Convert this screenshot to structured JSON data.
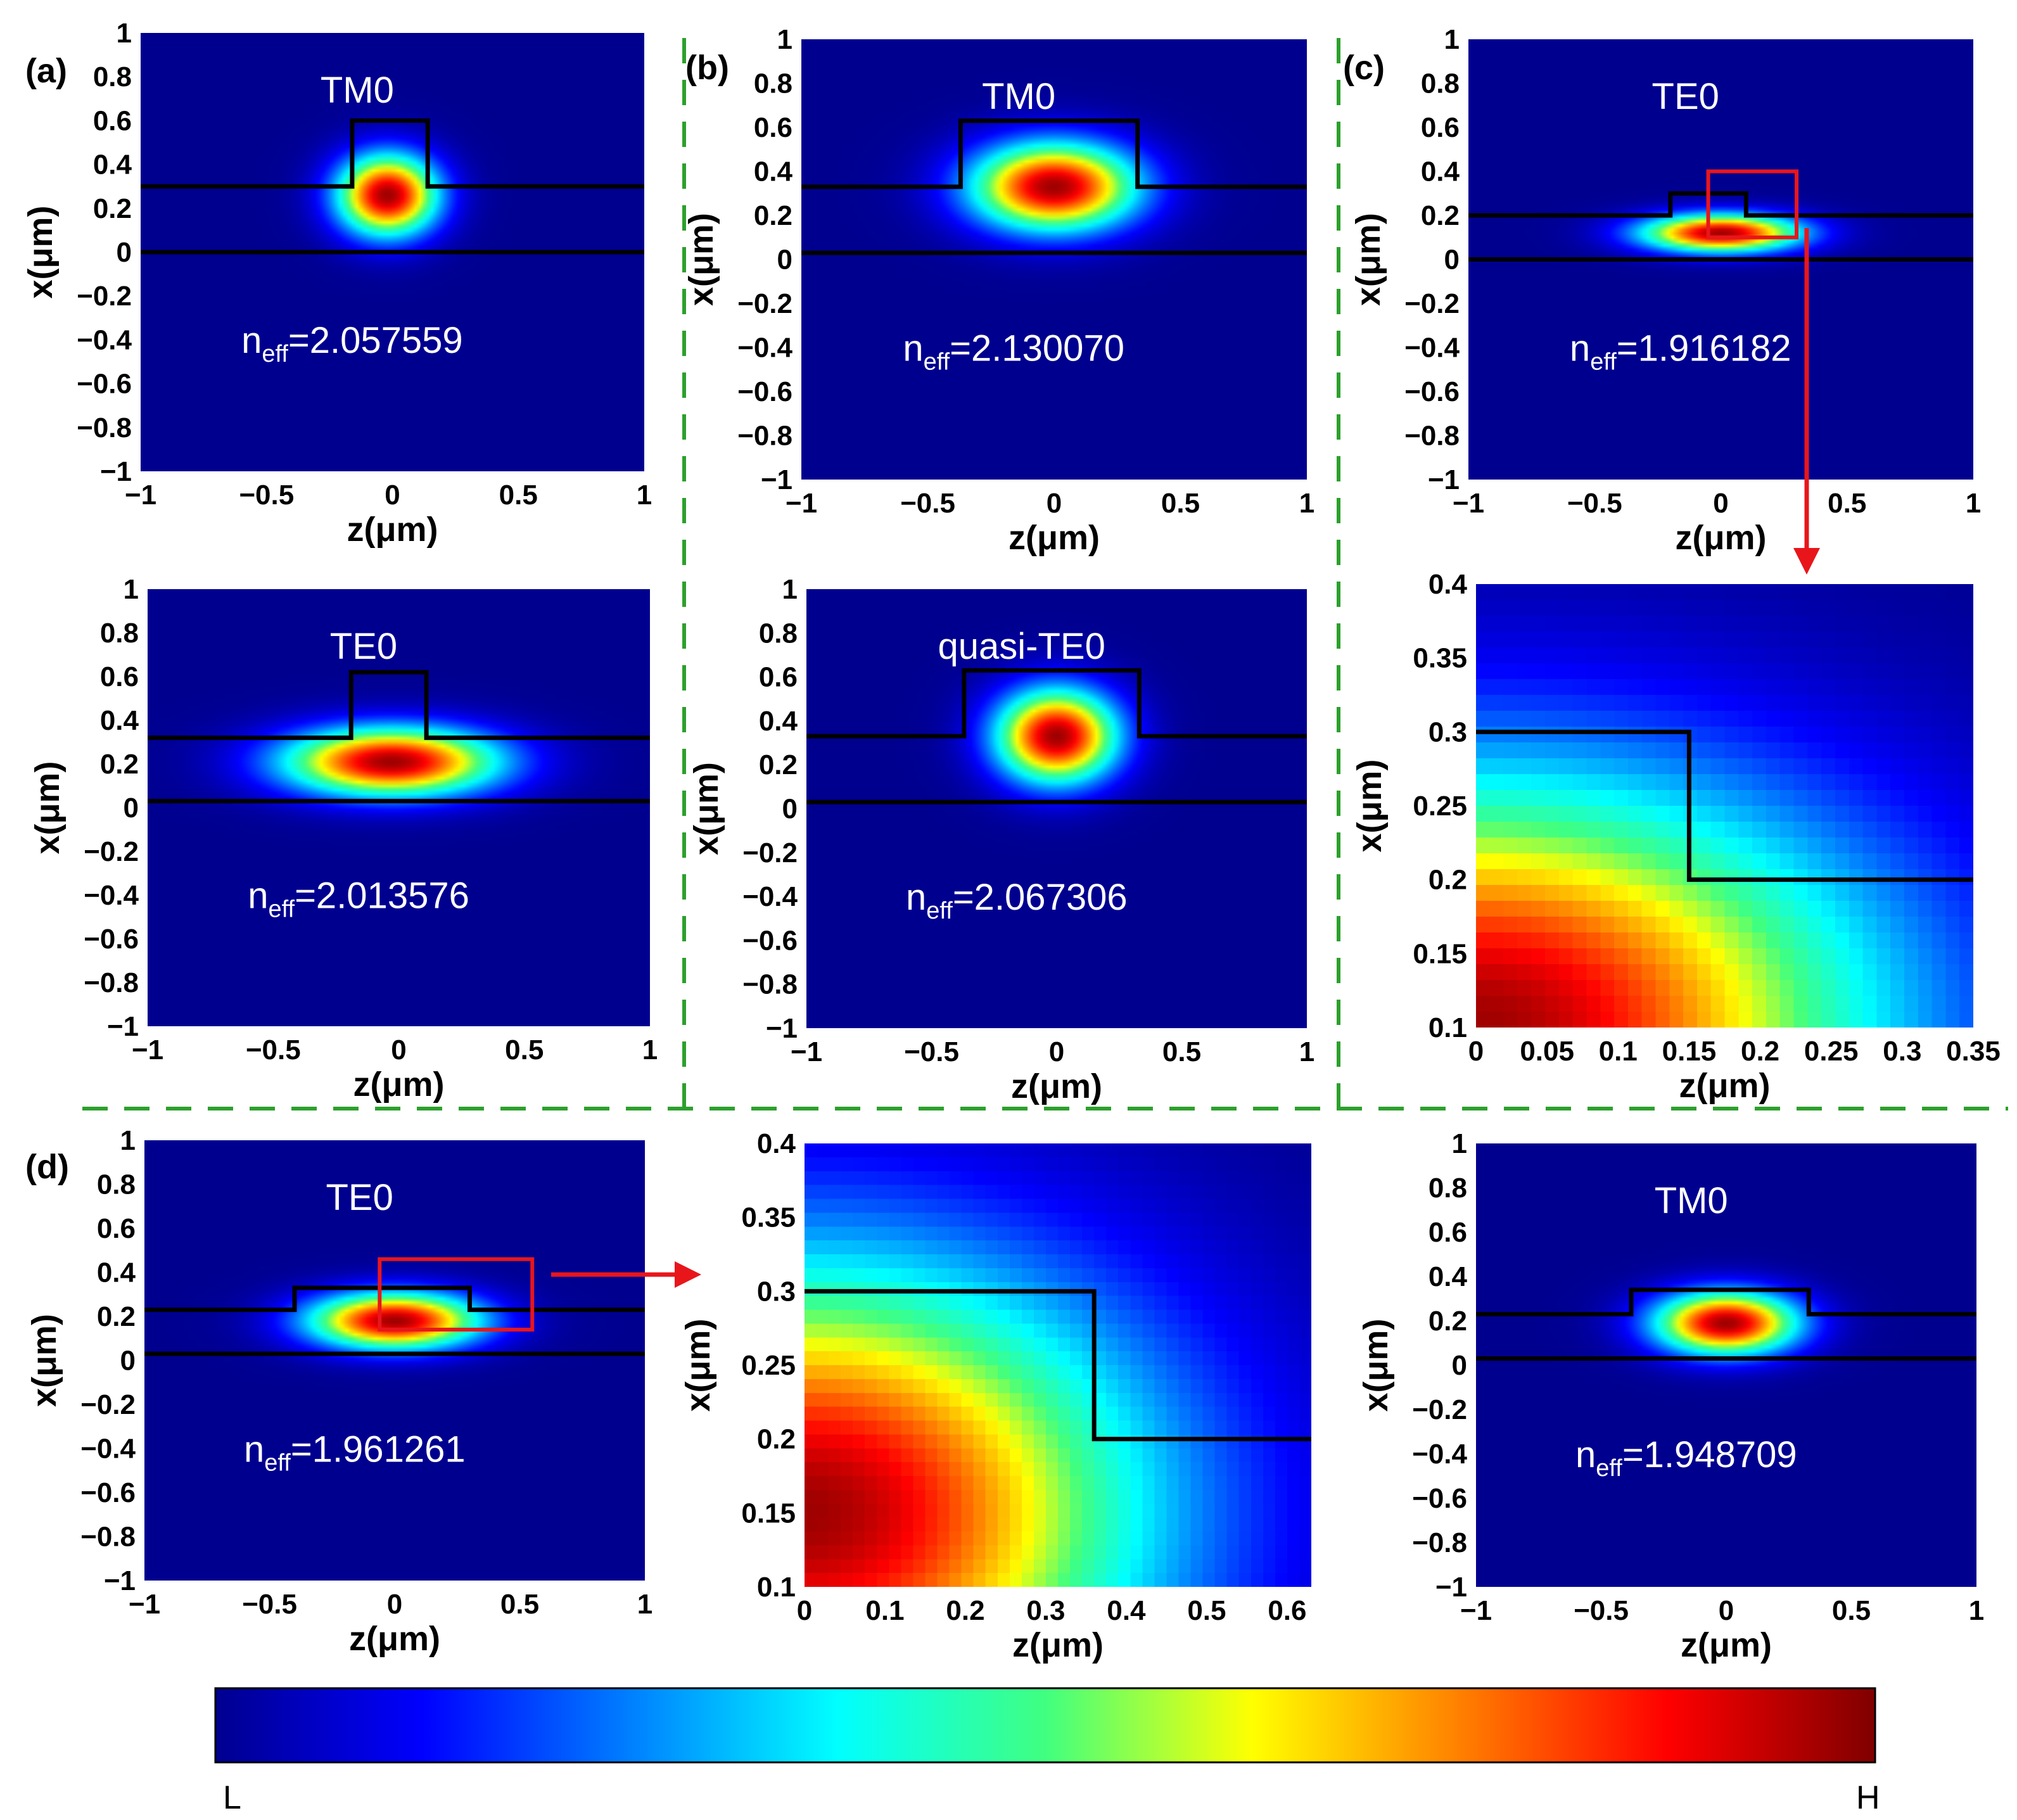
{
  "figure": {
    "colorbar": {
      "low_label": "L",
      "high_label": "H"
    }
  },
  "chart_data": [
    {
      "id": "a1",
      "type": "heatmap",
      "panel_label": "(a)",
      "mode": "TM0",
      "neff_sym": "n",
      "neff_sub": "eff",
      "neff_value": "=2.057559",
      "xlabel": "z(μm)",
      "ylabel": "x(μm)",
      "xlim": [
        -1,
        1
      ],
      "ylim": [
        -1,
        1
      ],
      "xticks": [
        -1,
        -0.5,
        0,
        0.5,
        1
      ],
      "xtick_labels": [
        "−1",
        "−0.5",
        "0",
        "0.5",
        "1"
      ],
      "yticks": [
        1,
        0.8,
        0.6,
        0.4,
        0.2,
        0,
        -0.2,
        -0.4,
        -0.6,
        -0.8,
        -1
      ],
      "ytick_labels": [
        "1",
        "0.8",
        "0.6",
        "0.4",
        "0.2",
        "0",
        "−0.2",
        "−0.4",
        "−0.6",
        "−0.8",
        "−1"
      ],
      "field": {
        "cz": -0.02,
        "cx": 0.26,
        "sz": 0.14,
        "sx": 0.13,
        "peak": 1.0
      },
      "waveguide": [
        [
          -1,
          0.3
        ],
        [
          -0.16,
          0.3
        ],
        [
          -0.16,
          0.6
        ],
        [
          0.14,
          0.6
        ],
        [
          0.14,
          0.3
        ],
        [
          1,
          0.3
        ]
      ],
      "substrate_line": 0.0
    },
    {
      "id": "a2",
      "type": "heatmap",
      "mode": "TE0",
      "neff_sym": "n",
      "neff_sub": "eff",
      "neff_value": "=2.013576",
      "xlabel": "z(μm)",
      "ylabel": "x(μm)",
      "xlim": [
        -1,
        1
      ],
      "ylim": [
        -1,
        1
      ],
      "xticks": [
        -1,
        -0.5,
        0,
        0.5,
        1
      ],
      "xtick_labels": [
        "−1",
        "−0.5",
        "0",
        "0.5",
        "1"
      ],
      "yticks": [
        1,
        0.8,
        0.6,
        0.4,
        0.2,
        0,
        -0.2,
        -0.4,
        -0.6,
        -0.8,
        -1
      ],
      "ytick_labels": [
        "1",
        "0.8",
        "0.6",
        "0.4",
        "0.2",
        "0",
        "−0.2",
        "−0.4",
        "−0.6",
        "−0.8",
        "−1"
      ],
      "field": {
        "cz": -0.03,
        "cx": 0.21,
        "sz": 0.3,
        "sx": 0.11,
        "peak": 1.0
      },
      "waveguide": [
        [
          -1,
          0.32
        ],
        [
          -0.19,
          0.32
        ],
        [
          -0.19,
          0.62
        ],
        [
          0.11,
          0.62
        ],
        [
          0.11,
          0.32
        ],
        [
          1,
          0.32
        ]
      ],
      "substrate_line": 0.03
    },
    {
      "id": "b1",
      "type": "heatmap",
      "panel_label": "(b)",
      "mode": "TM0",
      "neff_sym": "n",
      "neff_sub": "eff",
      "neff_value": "=2.130070",
      "xlabel": "z(μm)",
      "ylabel": "x(μm)",
      "xlim": [
        -1,
        1
      ],
      "ylim": [
        -1,
        1
      ],
      "xticks": [
        -1,
        -0.5,
        0,
        0.5,
        1
      ],
      "xtick_labels": [
        "−1",
        "−0.5",
        "0",
        "0.5",
        "1"
      ],
      "yticks": [
        1,
        0.8,
        0.6,
        0.4,
        0.2,
        0,
        -0.2,
        -0.4,
        -0.6,
        -0.8,
        -1
      ],
      "ytick_labels": [
        "1",
        "0.8",
        "0.6",
        "0.4",
        "0.2",
        "0",
        "−0.2",
        "−0.4",
        "−0.6",
        "−0.8",
        "−1"
      ],
      "field": {
        "cz": 0.0,
        "cx": 0.33,
        "sz": 0.23,
        "sx": 0.14,
        "peak": 1.0
      },
      "waveguide": [
        [
          -1,
          0.33
        ],
        [
          -0.37,
          0.33
        ],
        [
          -0.37,
          0.63
        ],
        [
          0.33,
          0.63
        ],
        [
          0.33,
          0.33
        ],
        [
          1,
          0.33
        ]
      ],
      "substrate_line": 0.03
    },
    {
      "id": "b2",
      "type": "heatmap",
      "mode": "quasi-TE0",
      "neff_sym": "n",
      "neff_sub": "eff",
      "neff_value": "=2.067306",
      "xlabel": "z(μm)",
      "ylabel": "x(μm)",
      "xlim": [
        -1,
        1
      ],
      "ylim": [
        -1,
        1
      ],
      "xticks": [
        -1,
        -0.5,
        0,
        0.5,
        1
      ],
      "xtick_labels": [
        "−1",
        "−0.5",
        "0",
        "0.5",
        "1"
      ],
      "yticks": [
        1,
        0.8,
        0.6,
        0.4,
        0.2,
        0,
        -0.2,
        -0.4,
        -0.6,
        -0.8,
        -1
      ],
      "ytick_labels": [
        "1",
        "0.8",
        "0.6",
        "0.4",
        "0.2",
        "0",
        "−0.2",
        "−0.4",
        "−0.6",
        "−0.8",
        "−1"
      ],
      "field": {
        "cz": 0.0,
        "cx": 0.33,
        "sz": 0.17,
        "sx": 0.15,
        "peak": 1.0
      },
      "waveguide": [
        [
          -1,
          0.33
        ],
        [
          -0.37,
          0.33
        ],
        [
          -0.37,
          0.63
        ],
        [
          0.33,
          0.63
        ],
        [
          0.33,
          0.33
        ],
        [
          1,
          0.33
        ]
      ],
      "substrate_line": 0.03
    },
    {
      "id": "c1",
      "type": "heatmap",
      "panel_label": "(c)",
      "mode": "TE0",
      "neff_sym": "n",
      "neff_sub": "eff",
      "neff_value": "=1.916182",
      "xlabel": "z(μm)",
      "ylabel": "x(μm)",
      "xlim": [
        -1,
        1
      ],
      "ylim": [
        -1,
        1
      ],
      "xticks": [
        -1,
        -0.5,
        0,
        0.5,
        1
      ],
      "xtick_labels": [
        "−1",
        "−0.5",
        "0",
        "0.5",
        "1"
      ],
      "yticks": [
        1,
        0.8,
        0.6,
        0.4,
        0.2,
        0,
        -0.2,
        -0.4,
        -0.6,
        -0.8,
        -1
      ],
      "ytick_labels": [
        "1",
        "0.8",
        "0.6",
        "0.4",
        "0.2",
        "0",
        "−0.2",
        "−0.4",
        "−0.6",
        "−0.8",
        "−1"
      ],
      "field": {
        "cz": 0.0,
        "cx": 0.12,
        "sz": 0.22,
        "sx": 0.06,
        "peak": 1.0
      },
      "waveguide": [
        [
          -1,
          0.2
        ],
        [
          -0.2,
          0.2
        ],
        [
          -0.2,
          0.3
        ],
        [
          0.1,
          0.3
        ],
        [
          0.1,
          0.2
        ],
        [
          1,
          0.2
        ]
      ],
      "substrate_line": 0.0,
      "zoom_box": {
        "z": [
          -0.05,
          0.3
        ],
        "x": [
          0.1,
          0.4
        ]
      }
    },
    {
      "id": "c2",
      "type": "heatmap",
      "mode": "",
      "xlabel": "z(μm)",
      "ylabel": "x(μm)",
      "xlim": [
        0,
        0.35
      ],
      "ylim": [
        0.1,
        0.4
      ],
      "xticks": [
        0,
        0.05,
        0.1,
        0.15,
        0.2,
        0.25,
        0.3,
        0.35
      ],
      "xtick_labels": [
        "0",
        "0.05",
        "0.1",
        "0.15",
        "0.2",
        "0.25",
        "0.3",
        "0.35"
      ],
      "yticks": [
        0.4,
        0.35,
        0.3,
        0.25,
        0.2,
        0.15,
        0.1
      ],
      "ytick_labels": [
        "0.4",
        "0.35",
        "0.3",
        "0.25",
        "0.2",
        "0.15",
        "0.1"
      ],
      "field": {
        "cz": 0.0,
        "cx": 0.1,
        "sz": 0.2,
        "sx": 0.12,
        "peak": 1.0
      },
      "waveguide": [
        [
          0,
          0.3
        ],
        [
          0.15,
          0.3
        ],
        [
          0.15,
          0.2
        ],
        [
          0.35,
          0.2
        ]
      ],
      "pixel_grid": [
        36,
        28
      ]
    },
    {
      "id": "d1",
      "type": "heatmap",
      "panel_label": "(d)",
      "mode": "TE0",
      "neff_sym": "n",
      "neff_sub": "eff",
      "neff_value": "=1.961261",
      "xlabel": "z(μm)",
      "ylabel": "x(μm)",
      "xlim": [
        -1,
        1
      ],
      "ylim": [
        -1,
        1
      ],
      "xticks": [
        -1,
        -0.5,
        0,
        0.5,
        1
      ],
      "xtick_labels": [
        "−1",
        "−0.5",
        "0",
        "0.5",
        "1"
      ],
      "yticks": [
        1,
        0.8,
        0.6,
        0.4,
        0.2,
        0,
        -0.2,
        -0.4,
        -0.6,
        -0.8,
        -1
      ],
      "ytick_labels": [
        "1",
        "0.8",
        "0.6",
        "0.4",
        "0.2",
        "0",
        "−0.2",
        "−0.4",
        "−0.6",
        "−0.8",
        "−1"
      ],
      "field": {
        "cz": 0.0,
        "cx": 0.18,
        "sz": 0.24,
        "sx": 0.09,
        "peak": 1.0
      },
      "waveguide": [
        [
          -1,
          0.23
        ],
        [
          -0.4,
          0.23
        ],
        [
          -0.4,
          0.33
        ],
        [
          0.3,
          0.33
        ],
        [
          0.3,
          0.23
        ],
        [
          1,
          0.23
        ]
      ],
      "substrate_line": 0.03,
      "zoom_box": {
        "z": [
          -0.06,
          0.55
        ],
        "x": [
          0.14,
          0.46
        ]
      }
    },
    {
      "id": "d2",
      "type": "heatmap",
      "mode": "",
      "xlabel": "z(μm)",
      "ylabel": "x(μm)",
      "xlim": [
        0,
        0.63
      ],
      "ylim": [
        0.1,
        0.4
      ],
      "xticks": [
        0,
        0.1,
        0.2,
        0.3,
        0.4,
        0.5,
        0.6
      ],
      "xtick_labels": [
        "0",
        "0.1",
        "0.2",
        "0.3",
        "0.4",
        "0.5",
        "0.6"
      ],
      "yticks": [
        0.4,
        0.35,
        0.3,
        0.25,
        0.2,
        0.15,
        0.1
      ],
      "ytick_labels": [
        "0.4",
        "0.35",
        "0.3",
        "0.25",
        "0.2",
        "0.15",
        "0.1"
      ],
      "field": {
        "cz": 0.0,
        "cx": 0.15,
        "sz": 0.3,
        "sx": 0.12,
        "peak": 1.0
      },
      "waveguide": [
        [
          0,
          0.3
        ],
        [
          0.36,
          0.3
        ],
        [
          0.36,
          0.2
        ],
        [
          0.63,
          0.2
        ]
      ],
      "pixel_grid": [
        42,
        32
      ]
    },
    {
      "id": "d3",
      "type": "heatmap",
      "mode": "TM0",
      "neff_sym": "n",
      "neff_sub": "eff",
      "neff_value": "=1.948709",
      "xlabel": "z(μm)",
      "ylabel": "x(μm)",
      "xlim": [
        -1,
        1
      ],
      "ylim": [
        -1,
        1
      ],
      "xticks": [
        -1,
        -0.5,
        0,
        0.5,
        1
      ],
      "xtick_labels": [
        "−1",
        "−0.5",
        "0",
        "0.5",
        "1"
      ],
      "yticks": [
        1,
        0.8,
        0.6,
        0.4,
        0.2,
        0,
        -0.2,
        -0.4,
        -0.6,
        -0.8,
        -1
      ],
      "ytick_labels": [
        "1",
        "0.8",
        "0.6",
        "0.4",
        "0.2",
        "0",
        "−0.2",
        "−0.4",
        "−0.6",
        "−0.8",
        "−1"
      ],
      "field": {
        "cz": 0.0,
        "cx": 0.19,
        "sz": 0.2,
        "sx": 0.1,
        "peak": 1.0
      },
      "waveguide": [
        [
          -1,
          0.23
        ],
        [
          -0.38,
          0.23
        ],
        [
          -0.38,
          0.34
        ],
        [
          0.33,
          0.34
        ],
        [
          0.33,
          0.23
        ],
        [
          1,
          0.23
        ]
      ],
      "substrate_line": 0.03
    }
  ]
}
